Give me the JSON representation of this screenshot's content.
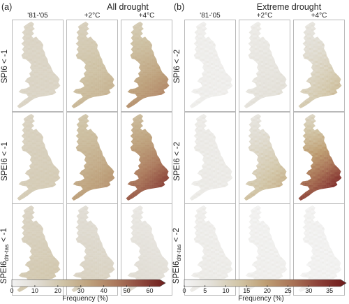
{
  "chart_data": {
    "type": "heatmap",
    "panel_labels": [
      "(a)",
      "(b)"
    ],
    "panel_titles": [
      "All drought",
      "Extreme drought"
    ],
    "column_labels": [
      "'81-'05",
      "+2°C",
      "+4°C"
    ],
    "row_labels": {
      "a": [
        {
          "main": "SPI6 < -1",
          "sub": ""
        },
        {
          "main": "SPEI6 < -1",
          "sub": ""
        },
        {
          "main": "SPEI6",
          "sub": "dtr-tas",
          "tail": " < -1"
        }
      ],
      "b": [
        {
          "main": "SPI6 < -2",
          "sub": ""
        },
        {
          "main": "SPEI6 < -2",
          "sub": ""
        },
        {
          "main": "SPEI6",
          "sub": "dtr-tas",
          "tail": " < -2"
        }
      ]
    },
    "colorbars": [
      {
        "ticks": [
          0,
          10,
          20,
          30,
          40,
          50,
          60
        ],
        "range": [
          0,
          65
        ],
        "label": "Frequency (%)",
        "colors": [
          "#f2f2f2",
          "#e0dcd3",
          "#cfc3a6",
          "#bea27d",
          "#ad7c5f",
          "#8f4a3e",
          "#6d1d1c"
        ]
      },
      {
        "ticks": [
          0,
          5,
          10,
          15,
          20,
          25,
          30,
          35
        ],
        "range": [
          0,
          38
        ],
        "label": "Frequency (%)",
        "colors": [
          "#f4f4f4",
          "#e3e0d8",
          "#d2c6a8",
          "#bf9f74",
          "#a97356",
          "#8c4038",
          "#6d1a1a"
        ]
      }
    ],
    "panels_a": [
      {
        "north": 14,
        "south": 14,
        "east": 14,
        "west": 14
      },
      {
        "north": 16,
        "south": 26,
        "east": 30,
        "west": 24
      },
      {
        "north": 18,
        "south": 38,
        "east": 44,
        "west": 32
      },
      {
        "north": 15,
        "south": 18,
        "east": 18,
        "west": 17
      },
      {
        "north": 20,
        "south": 34,
        "east": 40,
        "west": 30
      },
      {
        "north": 24,
        "south": 52,
        "east": 60,
        "west": 40
      },
      {
        "north": 14,
        "south": 20,
        "east": 20,
        "west": 18
      },
      {
        "north": 10,
        "south": 16,
        "east": 14,
        "west": 14
      },
      {
        "north": 5,
        "south": 12,
        "east": 8,
        "west": 10
      }
    ],
    "panels_b": [
      {
        "north": 2,
        "south": 2,
        "east": 2,
        "west": 2
      },
      {
        "north": 3,
        "south": 6,
        "east": 7,
        "west": 5
      },
      {
        "north": 5,
        "south": 12,
        "east": 16,
        "west": 9
      },
      {
        "north": 3,
        "south": 3,
        "east": 3,
        "west": 3
      },
      {
        "north": 5,
        "south": 14,
        "east": 18,
        "west": 11
      },
      {
        "north": 9,
        "south": 32,
        "east": 36,
        "west": 22
      },
      {
        "north": 2,
        "south": 3,
        "east": 3,
        "west": 3
      },
      {
        "north": 1,
        "south": 2,
        "east": 2,
        "west": 2
      },
      {
        "north": 1,
        "south": 1,
        "east": 1,
        "west": 1
      }
    ]
  }
}
